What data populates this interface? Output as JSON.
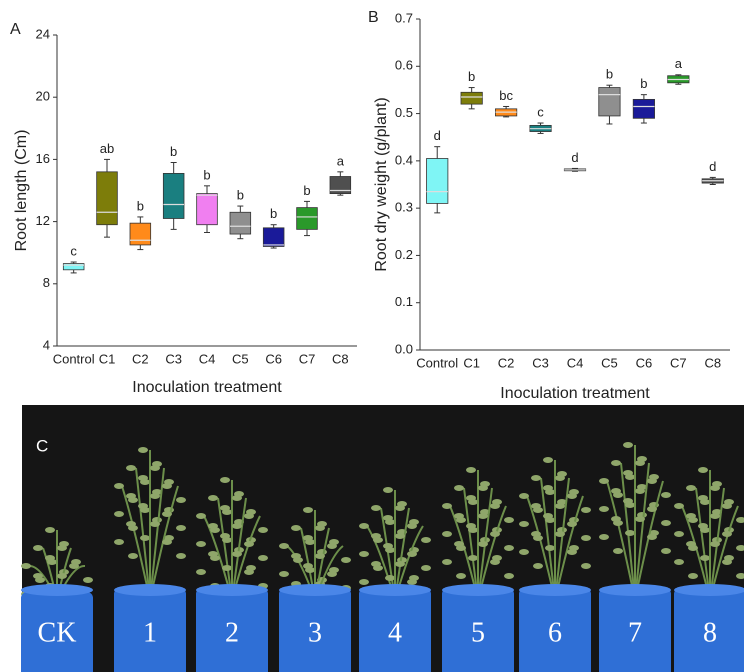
{
  "chart_data": [
    {
      "type": "box",
      "panel": "A",
      "ylabel": "Root length (Cm)",
      "xlabel": "Inoculation treatment",
      "categories": [
        "Control",
        "C1",
        "C2",
        "C3",
        "C4",
        "C5",
        "C6",
        "C7",
        "C8"
      ],
      "min": [
        8.7,
        11.0,
        10.2,
        11.5,
        11.3,
        10.9,
        10.3,
        11.1,
        13.7
      ],
      "q1": [
        8.9,
        11.8,
        10.5,
        12.2,
        11.8,
        11.2,
        10.4,
        11.5,
        13.8
      ],
      "median": [
        9.2,
        12.6,
        10.8,
        13.1,
        13.7,
        11.7,
        10.5,
        12.3,
        14.0
      ],
      "q3": [
        9.3,
        15.2,
        11.9,
        15.1,
        13.8,
        12.6,
        11.6,
        12.9,
        14.9
      ],
      "max": [
        9.4,
        16.0,
        12.3,
        15.8,
        14.3,
        13.0,
        11.8,
        13.3,
        15.2
      ],
      "colors": [
        "#7ff5f5",
        "#7d7d0a",
        "#ff8a1a",
        "#1a7f80",
        "#f07ff0",
        "#8f8f8f",
        "#1a1a99",
        "#2a992a",
        "#4f4f4f"
      ],
      "annotations": [
        "c",
        "ab",
        "b",
        "b",
        "b",
        "b",
        "b",
        "b",
        "a"
      ],
      "ylim": [
        4,
        24
      ],
      "yticks": [
        4,
        8,
        12,
        16,
        20,
        24
      ]
    },
    {
      "type": "box",
      "panel": "B",
      "ylabel": "Root dry weight (g/plant)",
      "xlabel": "Inoculation treatment",
      "categories": [
        "Control",
        "C1",
        "C2",
        "C3",
        "C4",
        "C5",
        "C6",
        "C7",
        "C8"
      ],
      "min": [
        0.29,
        0.51,
        0.493,
        0.458,
        0.378,
        0.478,
        0.48,
        0.562,
        0.35
      ],
      "q1": [
        0.31,
        0.52,
        0.495,
        0.462,
        0.379,
        0.495,
        0.49,
        0.565,
        0.353
      ],
      "median": [
        0.335,
        0.535,
        0.503,
        0.468,
        0.381,
        0.54,
        0.515,
        0.572,
        0.358
      ],
      "q3": [
        0.405,
        0.545,
        0.51,
        0.475,
        0.383,
        0.555,
        0.53,
        0.58,
        0.362
      ],
      "max": [
        0.43,
        0.555,
        0.515,
        0.48,
        0.384,
        0.56,
        0.54,
        0.582,
        0.365
      ],
      "colors": [
        "#7ff5f5",
        "#7d7d0a",
        "#ff8a1a",
        "#1a7f80",
        "#1a1a1a",
        "#8f8f8f",
        "#1a1a99",
        "#2a992a",
        "#4f4f4f"
      ],
      "annotations": [
        "d",
        "b",
        "bc",
        "c",
        "d",
        "b",
        "b",
        "a",
        "d"
      ],
      "ylim": [
        0,
        0.7
      ],
      "yticks": [
        {
          "value": 0,
          "label": "0.0"
        },
        0.1,
        0.2,
        0.3,
        0.4,
        0.5,
        0.6,
        0.7
      ]
    }
  ],
  "photo": {
    "panel": "C",
    "tubes": [
      "CK",
      "1",
      "2",
      "3",
      "4",
      "5",
      "6",
      "7",
      "8"
    ]
  }
}
